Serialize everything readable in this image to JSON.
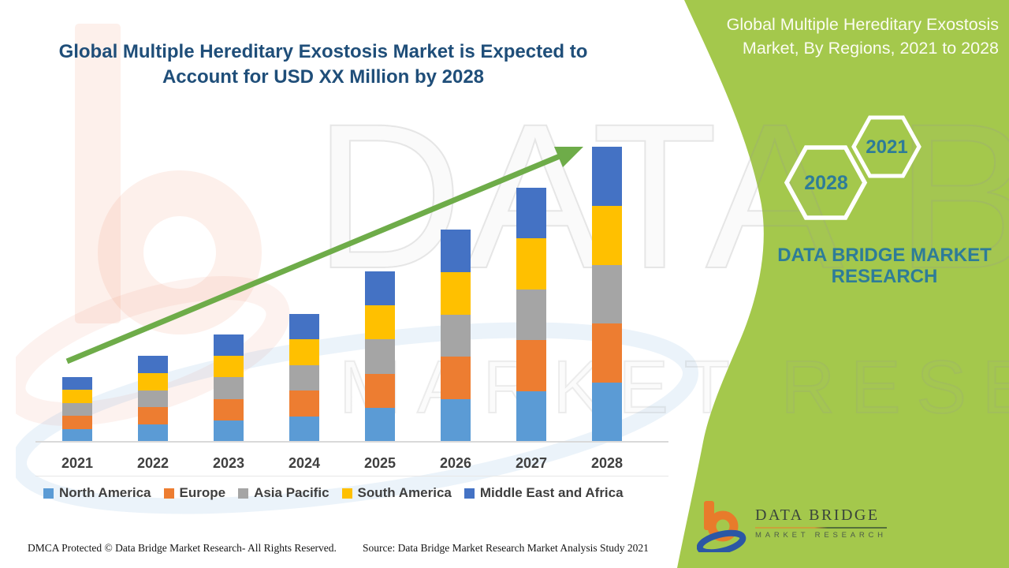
{
  "title": {
    "lines": [
      "Global Multiple Hereditary Exostosis Market is Expected to",
      "Account for USD XX Million by 2028"
    ],
    "color": "#1F4E79"
  },
  "right_panel": {
    "color": "#A4C84C",
    "accent_teal": "#2E7C98",
    "heading_lines": [
      "Global Multiple Hereditary Exostosis",
      "Market, By Regions, 2021 to 2028"
    ],
    "hexagon_large_year": "2028",
    "hexagon_small_year": "2021",
    "brand_lines": [
      "DATA BRIDGE MARKET",
      "RESEARCH"
    ]
  },
  "chart_data": {
    "type": "bar",
    "stacked": true,
    "title": "Global Multiple Hereditary Exostosis Market is Expected to Account for USD XX Million by 2028",
    "xlabel": "",
    "ylabel": "",
    "value_axis_visible": false,
    "legend_position": "bottom",
    "categories": [
      "2021",
      "2022",
      "2023",
      "2024",
      "2025",
      "2026",
      "2027",
      "2028"
    ],
    "series": [
      {
        "name": "North America",
        "color": "#5B9BD5",
        "values": [
          16.4,
          21.8,
          27.2,
          32.4,
          43.2,
          53.8,
          64.4,
          74.8
        ]
      },
      {
        "name": "Europe",
        "color": "#ED7D31",
        "values": [
          16.4,
          21.8,
          27.2,
          32.4,
          43.2,
          53.8,
          64.4,
          74.8
        ]
      },
      {
        "name": "Asia Pacific",
        "color": "#A5A5A5",
        "values": [
          16.4,
          21.8,
          27.2,
          32.4,
          43.2,
          53.8,
          64.4,
          74.8
        ]
      },
      {
        "name": "South America",
        "color": "#FFC000",
        "values": [
          16.4,
          21.8,
          27.2,
          32.4,
          43.2,
          53.8,
          64.4,
          74.8
        ]
      },
      {
        "name": "Middle East and Africa",
        "color": "#4472C4",
        "values": [
          16.4,
          21.8,
          27.2,
          32.4,
          43.2,
          53.8,
          64.4,
          74.8
        ]
      }
    ],
    "trend_arrow": {
      "present": true,
      "color": "#6EAC49"
    }
  },
  "watermarks": {
    "big_text": "DATA BRIDGE",
    "sub_text": "MARKET RESEARCH"
  },
  "logo": {
    "title": "DATA BRIDGE",
    "subtitle": "MARKET RESEARCH"
  },
  "footer": {
    "dmca": "DMCA Protected © Data Bridge Market Research- All Rights Reserved.",
    "source": "Source: Data Bridge Market Research Market Analysis Study 2021"
  }
}
